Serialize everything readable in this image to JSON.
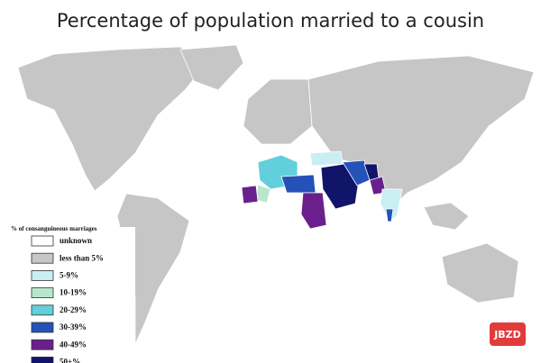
{
  "title": "Percentage of population married to a cousin",
  "legend": {
    "title": "% of consanguineous marriages",
    "items": [
      {
        "label": "unknown",
        "color": "#ffffff"
      },
      {
        "label": "less than 5%",
        "color": "#c6c6c6"
      },
      {
        "label": "5-9%",
        "color": "#c9eef3"
      },
      {
        "label": "10-19%",
        "color": "#b8e6cc"
      },
      {
        "label": "20-29%",
        "color": "#62d0dc"
      },
      {
        "label": "30-39%",
        "color": "#2452b8"
      },
      {
        "label": "40-49%",
        "color": "#6a1f8c"
      },
      {
        "label": "50+%",
        "color": "#10156a"
      }
    ]
  },
  "watermark": "JBZD"
}
